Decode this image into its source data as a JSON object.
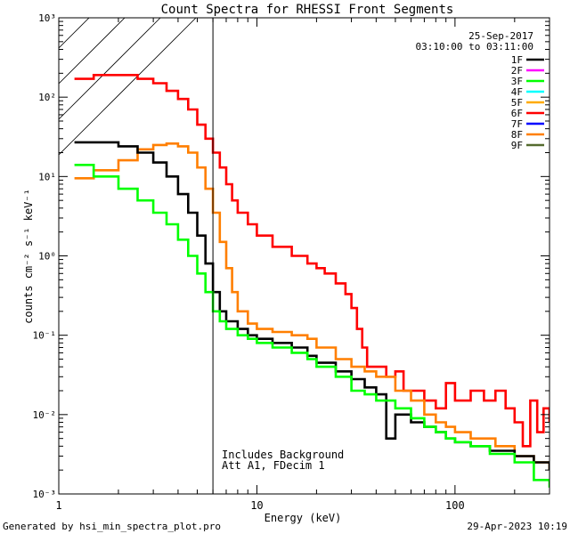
{
  "chart_data": {
    "type": "line",
    "title": "Count Spectra for RHESSI Front Segments",
    "xlabel": "Energy (keV)",
    "ylabel": "counts cm⁻² s⁻¹ keV⁻¹",
    "xscale": "log",
    "yscale": "log",
    "xlim": [
      1,
      300
    ],
    "ylim": [
      0.001,
      1000
    ],
    "x_tick_labels": [
      "1",
      "10",
      "100"
    ],
    "y_tick_labels": [
      "10⁻³",
      "10⁻²",
      "10⁻¹",
      "10⁰",
      "10¹",
      "10²",
      "10³"
    ],
    "date": "25-Sep-2017",
    "time_range": "03:10:00 to 03:11:00",
    "attenuator_cutoff_keV": 6,
    "annotations": [
      "Includes Background",
      "Att A1, FDecim 1"
    ],
    "footer_left": "Generated by hsi_min_spectra_plot.pro",
    "footer_right": "29-Apr-2023 10:19",
    "legend": [
      {
        "name": "1F",
        "color": "#000000"
      },
      {
        "name": "2F",
        "color": "#ff00ff"
      },
      {
        "name": "3F",
        "color": "#00ff00"
      },
      {
        "name": "4F",
        "color": "#00ffff"
      },
      {
        "name": "5F",
        "color": "#ffaa00"
      },
      {
        "name": "6F",
        "color": "#ff0000"
      },
      {
        "name": "7F",
        "color": "#0000ff"
      },
      {
        "name": "8F",
        "color": "#ff7f00"
      },
      {
        "name": "9F",
        "color": "#556b2f"
      }
    ],
    "series": [
      {
        "name": "6F",
        "color": "#ff0000",
        "points": [
          [
            1.2,
            170
          ],
          [
            1.5,
            190
          ],
          [
            2.0,
            190
          ],
          [
            2.5,
            170
          ],
          [
            3.0,
            150
          ],
          [
            3.5,
            120
          ],
          [
            4.0,
            95
          ],
          [
            4.5,
            70
          ],
          [
            5.0,
            45
          ],
          [
            5.5,
            30
          ],
          [
            6.0,
            20
          ],
          [
            6.5,
            13
          ],
          [
            7.0,
            8
          ],
          [
            7.5,
            5
          ],
          [
            8.0,
            3.5
          ],
          [
            9.0,
            2.5
          ],
          [
            10.0,
            1.8
          ],
          [
            12.0,
            1.3
          ],
          [
            15.0,
            1.0
          ],
          [
            18.0,
            0.8
          ],
          [
            20.0,
            0.7
          ],
          [
            22.0,
            0.6
          ],
          [
            25.0,
            0.45
          ],
          [
            28.0,
            0.33
          ],
          [
            30.0,
            0.22
          ],
          [
            32.0,
            0.12
          ],
          [
            34.0,
            0.07
          ],
          [
            36.0,
            0.04
          ],
          [
            40.0,
            0.04
          ],
          [
            45.0,
            0.03
          ],
          [
            50.0,
            0.035
          ],
          [
            55.0,
            0.02
          ],
          [
            60.0,
            0.02
          ],
          [
            70.0,
            0.015
          ],
          [
            80.0,
            0.012
          ],
          [
            90.0,
            0.025
          ],
          [
            100.0,
            0.015
          ],
          [
            120.0,
            0.02
          ],
          [
            140.0,
            0.015
          ],
          [
            160.0,
            0.02
          ],
          [
            180.0,
            0.012
          ],
          [
            200.0,
            0.008
          ],
          [
            220.0,
            0.004
          ],
          [
            240.0,
            0.015
          ],
          [
            260.0,
            0.006
          ],
          [
            280.0,
            0.012
          ],
          [
            300.0,
            0.008
          ]
        ]
      },
      {
        "name": "8F",
        "color": "#ff7f00",
        "points": [
          [
            1.2,
            9.5
          ],
          [
            1.5,
            12
          ],
          [
            2.0,
            16
          ],
          [
            2.5,
            22
          ],
          [
            3.0,
            25
          ],
          [
            3.5,
            26
          ],
          [
            4.0,
            24
          ],
          [
            4.5,
            20
          ],
          [
            5.0,
            13
          ],
          [
            5.5,
            7
          ],
          [
            6.0,
            3.5
          ],
          [
            6.5,
            1.5
          ],
          [
            7.0,
            0.7
          ],
          [
            7.5,
            0.35
          ],
          [
            8.0,
            0.2
          ],
          [
            9.0,
            0.14
          ],
          [
            10.0,
            0.12
          ],
          [
            12.0,
            0.11
          ],
          [
            15.0,
            0.1
          ],
          [
            18.0,
            0.09
          ],
          [
            20.0,
            0.07
          ],
          [
            25.0,
            0.05
          ],
          [
            30.0,
            0.04
          ],
          [
            35.0,
            0.035
          ],
          [
            40.0,
            0.03
          ],
          [
            50.0,
            0.02
          ],
          [
            60.0,
            0.015
          ],
          [
            70.0,
            0.01
          ],
          [
            80.0,
            0.008
          ],
          [
            90.0,
            0.007
          ],
          [
            100.0,
            0.006
          ],
          [
            120.0,
            0.005
          ],
          [
            140.0,
            0.005
          ],
          [
            160.0,
            0.004
          ],
          [
            180.0,
            0.004
          ],
          [
            200.0,
            0.003
          ],
          [
            250.0,
            0.0025
          ],
          [
            300.0,
            0.002
          ]
        ]
      },
      {
        "name": "1F",
        "color": "#000000",
        "points": [
          [
            1.2,
            27
          ],
          [
            1.5,
            27
          ],
          [
            2.0,
            24
          ],
          [
            2.5,
            20
          ],
          [
            3.0,
            15
          ],
          [
            3.5,
            10
          ],
          [
            4.0,
            6
          ],
          [
            4.5,
            3.5
          ],
          [
            5.0,
            1.8
          ],
          [
            5.5,
            0.8
          ],
          [
            6.0,
            0.35
          ],
          [
            6.5,
            0.2
          ],
          [
            7.0,
            0.15
          ],
          [
            8.0,
            0.12
          ],
          [
            9.0,
            0.1
          ],
          [
            10.0,
            0.09
          ],
          [
            12.0,
            0.08
          ],
          [
            15.0,
            0.07
          ],
          [
            18.0,
            0.055
          ],
          [
            20.0,
            0.045
          ],
          [
            25.0,
            0.035
          ],
          [
            30.0,
            0.028
          ],
          [
            35.0,
            0.022
          ],
          [
            40.0,
            0.018
          ],
          [
            45.0,
            0.005
          ],
          [
            50.0,
            0.01
          ],
          [
            60.0,
            0.008
          ],
          [
            70.0,
            0.007
          ],
          [
            80.0,
            0.006
          ],
          [
            90.0,
            0.005
          ],
          [
            100.0,
            0.0045
          ],
          [
            120.0,
            0.004
          ],
          [
            150.0,
            0.0035
          ],
          [
            200.0,
            0.003
          ],
          [
            250.0,
            0.0025
          ],
          [
            300.0,
            0.002
          ]
        ]
      },
      {
        "name": "3F",
        "color": "#00ff00",
        "points": [
          [
            1.2,
            14
          ],
          [
            1.5,
            10
          ],
          [
            2.0,
            7
          ],
          [
            2.5,
            5
          ],
          [
            3.0,
            3.5
          ],
          [
            3.5,
            2.5
          ],
          [
            4.0,
            1.6
          ],
          [
            4.5,
            1.0
          ],
          [
            5.0,
            0.6
          ],
          [
            5.5,
            0.35
          ],
          [
            6.0,
            0.2
          ],
          [
            6.5,
            0.15
          ],
          [
            7.0,
            0.12
          ],
          [
            8.0,
            0.1
          ],
          [
            9.0,
            0.09
          ],
          [
            10.0,
            0.08
          ],
          [
            12.0,
            0.07
          ],
          [
            15.0,
            0.06
          ],
          [
            18.0,
            0.05
          ],
          [
            20.0,
            0.04
          ],
          [
            25.0,
            0.03
          ],
          [
            30.0,
            0.02
          ],
          [
            35.0,
            0.018
          ],
          [
            40.0,
            0.015
          ],
          [
            50.0,
            0.012
          ],
          [
            60.0,
            0.009
          ],
          [
            70.0,
            0.007
          ],
          [
            80.0,
            0.006
          ],
          [
            90.0,
            0.005
          ],
          [
            100.0,
            0.0045
          ],
          [
            120.0,
            0.004
          ],
          [
            150.0,
            0.0032
          ],
          [
            200.0,
            0.0025
          ],
          [
            250.0,
            0.0015
          ],
          [
            300.0,
            0.0012
          ]
        ]
      }
    ]
  }
}
